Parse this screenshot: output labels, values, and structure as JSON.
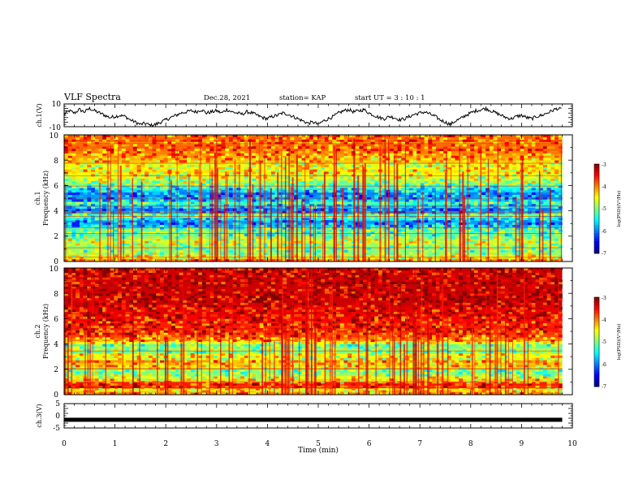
{
  "header": {
    "title": "VLF Spectra",
    "date": "Dec.28, 2021",
    "station": "station= KAP",
    "start": "start  UT =   3  : 10 : 1"
  },
  "chart_data": [
    {
      "type": "line",
      "ylabel": "ch.1(V)",
      "ylim": [
        -10,
        10
      ],
      "yticks": [
        "10",
        "-10"
      ],
      "x": [
        0.0,
        0.1,
        0.2,
        0.3,
        0.4,
        0.5,
        0.6,
        0.7,
        0.8,
        0.9,
        1.0,
        1.1,
        1.2,
        1.3,
        1.4,
        1.5,
        1.6,
        1.7,
        1.8,
        1.9,
        2.0,
        2.1,
        2.2,
        2.3,
        2.4,
        2.5,
        2.6,
        2.7,
        2.8,
        2.9,
        3.0,
        3.1,
        3.2,
        3.3,
        3.4,
        3.5,
        3.6,
        3.7,
        3.8,
        3.9,
        4.0,
        4.1,
        4.2,
        4.3,
        4.4,
        4.5,
        4.6,
        4.7,
        4.8,
        4.9,
        5.0,
        5.1,
        5.2,
        5.3,
        5.4,
        5.5,
        5.6,
        5.7,
        5.8,
        5.9,
        6.0,
        6.1,
        6.2,
        6.3,
        6.4,
        6.5,
        6.6,
        6.7,
        6.8,
        6.9,
        7.0,
        7.1,
        7.2,
        7.3,
        7.4,
        7.5,
        7.6,
        7.7,
        7.8,
        7.9,
        8.0,
        8.1,
        8.2,
        8.3,
        8.4,
        8.5,
        8.6,
        8.7,
        8.8,
        8.9,
        9.0,
        9.1,
        9.2,
        9.3,
        9.4,
        9.5,
        9.6,
        9.7,
        9.8
      ],
      "values": [
        1,
        4,
        2,
        5,
        3,
        6,
        4,
        2,
        0,
        -2,
        -1,
        0,
        -1,
        -4,
        -6,
        -8,
        -7,
        -9,
        -8,
        -6,
        -4,
        -2,
        0,
        2,
        3,
        4,
        3,
        5,
        2,
        3,
        4,
        2,
        5,
        3,
        2,
        1,
        3,
        2,
        0,
        -2,
        -3,
        -1,
        0,
        2,
        1,
        -1,
        -3,
        -5,
        -7,
        -6,
        -8,
        -5,
        -3,
        -1,
        2,
        4,
        5,
        3,
        4,
        5,
        2,
        0,
        -2,
        -3,
        -1,
        -2,
        -4,
        -3,
        -1,
        1,
        2,
        3,
        1,
        -1,
        -4,
        -6,
        -8,
        -5,
        -3,
        0,
        2,
        4,
        5,
        6,
        4,
        2,
        0,
        -2,
        -3,
        -1,
        0,
        -2,
        -3,
        -1,
        0,
        2,
        4,
        6,
        5
      ]
    },
    {
      "type": "heatmap",
      "ylabel": "ch.1\nFrequency (kHz)",
      "ylim": [
        0,
        10
      ],
      "yticks": [
        "0",
        "2",
        "4",
        "6",
        "8",
        "10"
      ],
      "colorbar": {
        "label": "log(PSD)(V²/Hz)",
        "range": [
          -7,
          -3
        ],
        "ticks": [
          "-3",
          "-4",
          "-5",
          "-6",
          "-7"
        ]
      },
      "band_levels_from_0_to_10kHz": [
        -4.0,
        -4.6,
        -4.9,
        -5.0,
        -4.9,
        -4.8,
        -4.7,
        -4.9,
        -5.2,
        -5.1,
        -5.2,
        -5.7,
        -5.9,
        -5.5,
        -5.1,
        -5.8,
        -6.0,
        -5.6,
        -5.2,
        -5.7,
        -5.9,
        -6.0,
        -5.6,
        -5.3,
        -5.0,
        -4.8,
        -4.6,
        -4.5,
        -4.4,
        -4.5,
        -4.6,
        -4.3,
        -4.2,
        -4.1,
        -4.0,
        -3.9,
        -3.9,
        -4.0,
        -3.9,
        -3.9
      ]
    },
    {
      "type": "heatmap",
      "ylabel": "ch.2\nFrequency (kHz)",
      "ylim": [
        0,
        10
      ],
      "yticks": [
        "0",
        "2",
        "4",
        "6",
        "8",
        "10"
      ],
      "colorbar": {
        "label": "log(PSD)(V²/Hz)",
        "range": [
          -7,
          -3
        ],
        "ticks": [
          "-3",
          "-4",
          "-5",
          "-6",
          "-7"
        ]
      },
      "band_levels_from_0_to_10kHz": [
        -4.0,
        -4.4,
        -3.7,
        -3.6,
        -4.3,
        -4.6,
        -4.9,
        -5.0,
        -4.6,
        -4.3,
        -4.1,
        -4.6,
        -4.5,
        -5.0,
        -4.9,
        -5.1,
        -4.5,
        -4.0,
        -3.8,
        -3.7,
        -3.6,
        -3.6,
        -3.6,
        -3.5,
        -3.5,
        -3.4,
        -3.4,
        -3.4,
        -3.3,
        -3.3,
        -3.3,
        -3.3,
        -3.3,
        -3.3,
        -3.3,
        -3.3,
        -3.3,
        -3.3,
        -3.3,
        -3.3
      ]
    },
    {
      "type": "line",
      "ylabel": "ch.3(V)",
      "ylim": [
        -5,
        5
      ],
      "yticks": [
        "5",
        "0",
        "-5"
      ],
      "x": [
        0,
        9.8
      ],
      "values": [
        -1.8,
        -1.8
      ],
      "xlabel": "Time  (min)",
      "xlim": [
        0,
        10
      ],
      "xticks": [
        "0",
        "1",
        "2",
        "3",
        "4",
        "5",
        "6",
        "7",
        "8",
        "9",
        "10"
      ]
    }
  ]
}
